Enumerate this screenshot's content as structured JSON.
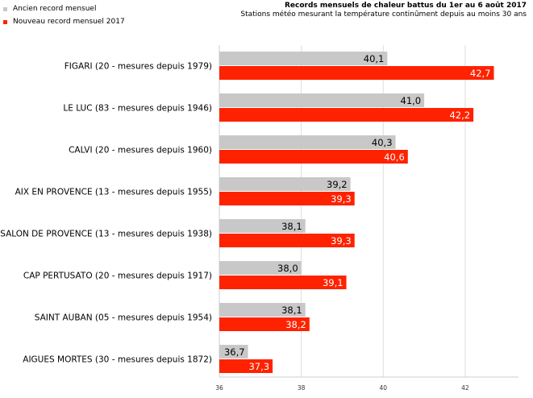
{
  "chart_data": {
    "type": "bar",
    "orientation": "horizontal",
    "title": "Records mensuels de chaleur battus du 1er au 6 août 2017",
    "subtitle": "Stations météo mesurant la température continûment depuis au moins 30 ans",
    "xlabel": "",
    "ylabel": "",
    "xlim": [
      36,
      43.3
    ],
    "x_ticks": [
      36,
      38,
      40,
      42
    ],
    "grid": true,
    "legend_position": "top-left",
    "categories": [
      "FIGARI (20 - mesures depuis 1979)",
      "LE LUC (83 - mesures depuis 1946)",
      "CALVI (20 - mesures depuis 1960)",
      "AIX EN PROVENCE (13 - mesures depuis 1955)",
      "SALON DE PROVENCE (13 - mesures depuis 1938)",
      "CAP PERTUSATO (20 - mesures depuis 1917)",
      "SAINT AUBAN (05 - mesures depuis 1954)",
      "AIGUES MORTES (30 - mesures depuis 1872)"
    ],
    "series": [
      {
        "name": "Ancien record mensuel",
        "color": "#c8c8c8",
        "label_color": "#000000",
        "values": [
          40.1,
          41.0,
          40.3,
          39.2,
          38.1,
          38.0,
          38.1,
          36.7
        ],
        "labels": [
          "40,1",
          "41,0",
          "40,3",
          "39,2",
          "38,1",
          "38,0",
          "38,1",
          "36,7"
        ]
      },
      {
        "name": "Nouveau record mensuel 2017",
        "color": "#ff2200",
        "label_color": "#ffffff",
        "values": [
          42.7,
          42.2,
          40.6,
          39.3,
          39.3,
          39.1,
          38.2,
          37.3
        ],
        "labels": [
          "42,7",
          "42,2",
          "40,6",
          "39,3",
          "39,3",
          "39,1",
          "38,2",
          "37,3"
        ]
      }
    ],
    "tick_labels": [
      "36",
      "38",
      "40",
      "42"
    ]
  }
}
